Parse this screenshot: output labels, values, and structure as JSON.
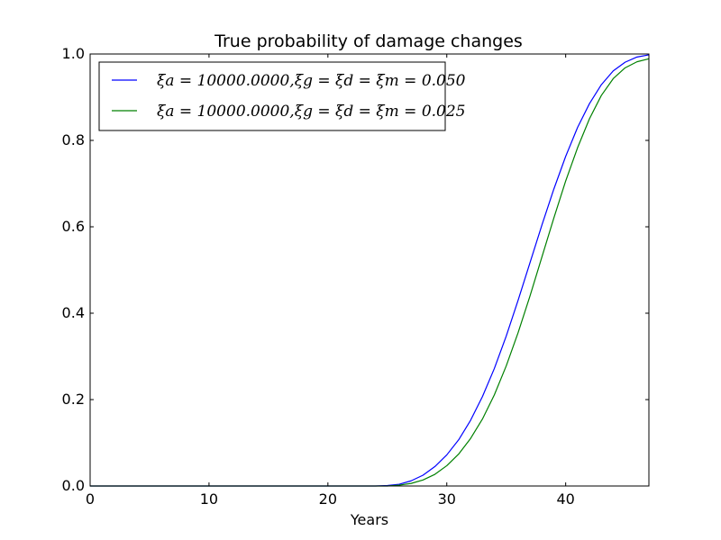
{
  "chart_data": {
    "type": "line",
    "title": "True probability of damage changes",
    "xlabel": "Years",
    "ylabel": "",
    "xlim": [
      0,
      47
    ],
    "ylim": [
      0.0,
      1.0
    ],
    "xticks": [
      0,
      10,
      20,
      30,
      40
    ],
    "xtick_labels": [
      "0",
      "10",
      "20",
      "30",
      "40"
    ],
    "yticks": [
      0.0,
      0.2,
      0.4,
      0.6,
      0.8,
      1.0
    ],
    "ytick_labels": [
      "0.0",
      "0.2",
      "0.4",
      "0.6",
      "0.8",
      "1.0"
    ],
    "grid": false,
    "legend_position": "top-left",
    "series": [
      {
        "name": "ξa = 10000.0000, ξg = ξd = ξm = 0.050",
        "color": "#0000ff",
        "x": [
          0,
          5,
          10,
          15,
          20,
          24,
          25,
          26,
          27,
          28,
          29,
          30,
          31,
          32,
          33,
          34,
          35,
          36,
          37,
          38,
          39,
          40,
          41,
          42,
          43,
          44,
          45,
          46,
          47
        ],
        "y": [
          0,
          0,
          0,
          0,
          0,
          0.0,
          0.001,
          0.004,
          0.012,
          0.025,
          0.045,
          0.072,
          0.107,
          0.152,
          0.207,
          0.272,
          0.347,
          0.43,
          0.517,
          0.604,
          0.687,
          0.763,
          0.83,
          0.885,
          0.929,
          0.961,
          0.981,
          0.993,
          0.998
        ]
      },
      {
        "name": "ξa = 10000.0000, ξg = ξd = ξm = 0.025",
        "color": "#008000",
        "x": [
          0,
          5,
          10,
          15,
          20,
          25,
          26,
          27,
          28,
          29,
          30,
          31,
          32,
          33,
          34,
          35,
          36,
          37,
          38,
          39,
          40,
          41,
          42,
          43,
          44,
          45,
          46,
          47
        ],
        "y": [
          0,
          0,
          0,
          0,
          0,
          0.0,
          0.002,
          0.006,
          0.014,
          0.027,
          0.047,
          0.074,
          0.11,
          0.155,
          0.211,
          0.278,
          0.355,
          0.44,
          0.53,
          0.62,
          0.706,
          0.783,
          0.85,
          0.904,
          0.943,
          0.968,
          0.982,
          0.989
        ]
      }
    ]
  },
  "legend": {
    "items": [
      {
        "xi_a": "ξa = 10000.0000,",
        "rest": "ξg = ξd = ξm = 0.050",
        "color": "#0000ff"
      },
      {
        "xi_a": "ξa = 10000.0000,",
        "rest": "ξg = ξd = ξm = 0.025",
        "color": "#008000"
      }
    ]
  }
}
